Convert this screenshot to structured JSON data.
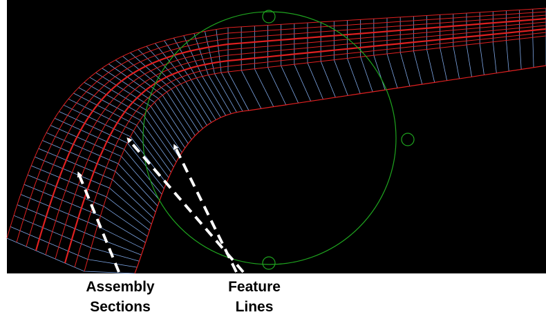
{
  "annotations": [
    {
      "lines": [
        "Assembly",
        "Sections"
      ]
    },
    {
      "lines": [
        "Feature",
        "Lines"
      ]
    }
  ]
}
